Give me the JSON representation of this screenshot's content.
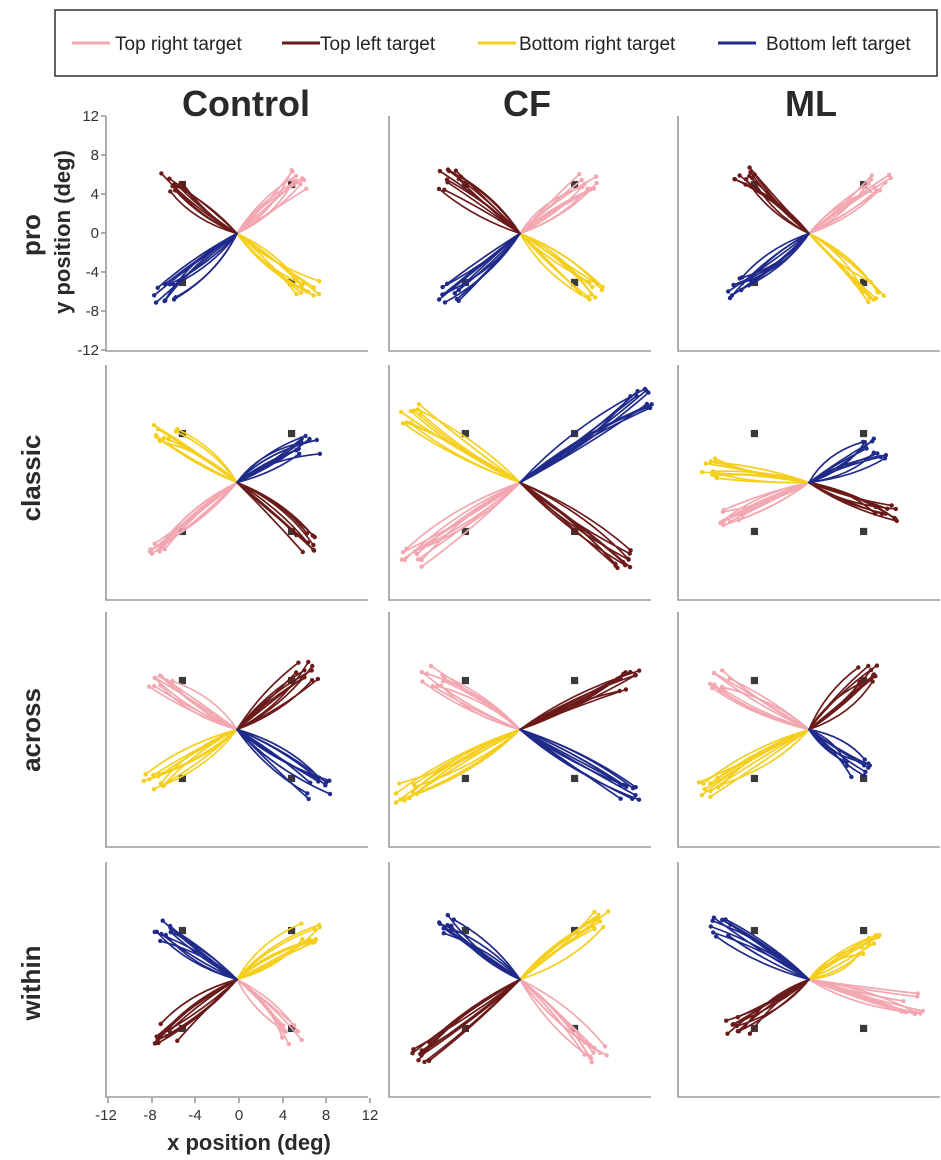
{
  "legend": {
    "items": [
      {
        "label": "Top right target",
        "color": "#f2a7b1"
      },
      {
        "label": "Top left target",
        "color": "#6b1a1a"
      },
      {
        "label": "Bottom right target",
        "color": "#f5cf1e"
      },
      {
        "label": "Bottom left target",
        "color": "#1f2a8a"
      }
    ]
  },
  "columns": [
    "Control",
    "CF",
    "ML"
  ],
  "rows": [
    "pro",
    "classic",
    "across",
    "within"
  ],
  "axes": {
    "ylabel": "y position (deg)",
    "xlabel": "x position (deg)",
    "yticks": [
      "12",
      "8",
      "4",
      "0",
      "-4",
      "-8",
      "-12"
    ],
    "xticks": [
      "-12",
      "-8",
      "-4",
      "0",
      "4",
      "8",
      "12"
    ]
  },
  "chart_data": {
    "type": "line",
    "description_units": "deg",
    "xlim": [
      -12,
      12
    ],
    "ylim": [
      -12,
      12
    ],
    "targets": [
      [
        5,
        5
      ],
      [
        -5,
        5
      ],
      [
        5,
        -5
      ],
      [
        -5,
        -5
      ]
    ],
    "series": [
      {
        "name": "Top right target",
        "target": [
          5,
          5
        ]
      },
      {
        "name": "Top left target",
        "target": [
          -5,
          5
        ]
      },
      {
        "name": "Bottom right target",
        "target": [
          5,
          -5
        ]
      },
      {
        "name": "Bottom left target",
        "target": [
          -5,
          -5
        ]
      }
    ],
    "panels": [
      {
        "row": "pro",
        "column": "Control",
        "endpoints": {
          "Top right target": [
            6,
            5.5
          ],
          "Top left target": [
            -6,
            5.2
          ],
          "Bottom right target": [
            6.5,
            -5.8
          ],
          "Bottom left target": [
            -6.5,
            -6
          ]
        }
      },
      {
        "row": "pro",
        "column": "CF",
        "endpoints": {
          "Top right target": [
            6.5,
            5.5
          ],
          "Top left target": [
            -6.5,
            5.5
          ],
          "Bottom right target": [
            6.5,
            -5.8
          ],
          "Bottom left target": [
            -6.5,
            -6
          ]
        }
      },
      {
        "row": "pro",
        "column": "ML",
        "endpoints": {
          "Top right target": [
            6.5,
            5
          ],
          "Top left target": [
            -6,
            5.8
          ],
          "Bottom right target": [
            6,
            -6
          ],
          "Bottom left target": [
            -6.5,
            -5.5
          ]
        }
      },
      {
        "row": "classic",
        "column": "Control",
        "endpoints": {
          "Top right target": [
            -7,
            -6.5
          ],
          "Top left target": [
            6.5,
            -6
          ],
          "Bottom right target": [
            -6.5,
            4.8
          ],
          "Bottom left target": [
            6.5,
            4
          ]
        }
      },
      {
        "row": "classic",
        "column": "CF",
        "endpoints": {
          "Top right target": [
            -10,
            -7.5
          ],
          "Top left target": [
            9.5,
            -8
          ],
          "Bottom right target": [
            -10,
            7
          ],
          "Bottom left target": [
            11,
            8.5
          ]
        }
      },
      {
        "row": "classic",
        "column": "ML",
        "endpoints": {
          "Top right target": [
            -7,
            -3.5
          ],
          "Top left target": [
            7,
            -3
          ],
          "Bottom right target": [
            -9,
            1.5
          ],
          "Bottom left target": [
            6,
            3.5
          ]
        }
      },
      {
        "row": "across",
        "column": "Control",
        "endpoints": {
          "Top right target": [
            -7,
            5
          ],
          "Top left target": [
            6.5,
            6
          ],
          "Bottom right target": [
            -7.5,
            -5.5
          ],
          "Bottom left target": [
            7.5,
            -6
          ]
        }
      },
      {
        "row": "across",
        "column": "CF",
        "endpoints": {
          "Top right target": [
            -8,
            5.5
          ],
          "Top left target": [
            10,
            5
          ],
          "Bottom right target": [
            -10.5,
            -6.5
          ],
          "Bottom left target": [
            10,
            -6.5
          ]
        }
      },
      {
        "row": "across",
        "column": "ML",
        "endpoints": {
          "Top right target": [
            -8,
            5
          ],
          "Top left target": [
            5.5,
            5.5
          ],
          "Bottom right target": [
            -9,
            -6
          ],
          "Bottom left target": [
            4.5,
            -4
          ]
        }
      },
      {
        "row": "within",
        "column": "Control",
        "endpoints": {
          "Top right target": [
            5,
            -5.5
          ],
          "Top left target": [
            -6.5,
            -5.5
          ],
          "Bottom right target": [
            6.5,
            4.8
          ],
          "Bottom left target": [
            -6.5,
            5
          ]
        }
      },
      {
        "row": "within",
        "column": "CF",
        "endpoints": {
          "Top right target": [
            7,
            -7.5
          ],
          "Top left target": [
            -9,
            -7.5
          ],
          "Bottom right target": [
            7,
            6
          ],
          "Bottom left target": [
            -6.5,
            5.5
          ]
        }
      },
      {
        "row": "within",
        "column": "ML",
        "endpoints": {
          "Top right target": [
            9.5,
            -2.5
          ],
          "Top left target": [
            -6.5,
            -4.5
          ],
          "Bottom right target": [
            5.5,
            3.5
          ],
          "Bottom left target": [
            -8,
            5.5
          ]
        }
      }
    ]
  }
}
